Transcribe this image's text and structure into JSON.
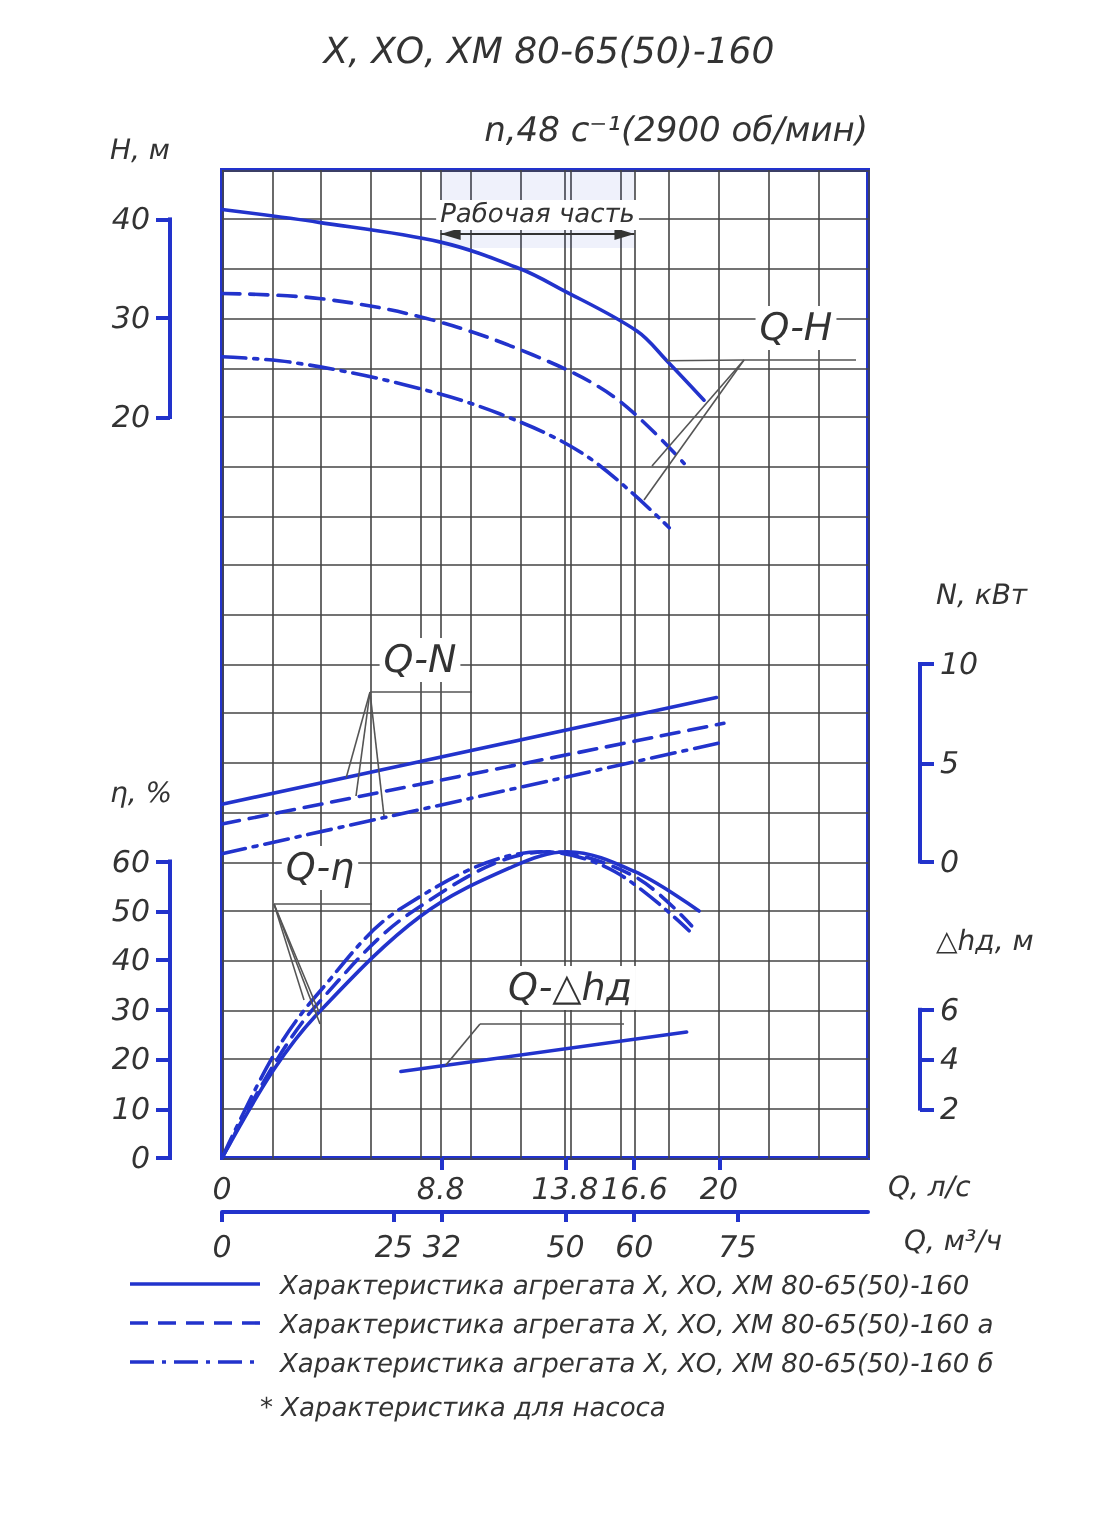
{
  "chart_data": [
    {
      "type": "line",
      "title": "Х, ХО, ХМ 80-65(50)-160",
      "subtitle": "n,48 с⁻¹(2900 об/мин)",
      "xlabel": "Q, л/с",
      "x2label": "Q, м³/ч",
      "ylabel": "Н, м",
      "y2label": "N, кВт",
      "y3label": "η, %",
      "xlim": [
        0,
        26
      ],
      "xticks": [
        0,
        {
          "value": 2,
          "label": null
        },
        {
          "value": 4,
          "label": null
        },
        {
          "value": 6,
          "label": null
        },
        {
          "value": 8,
          "label": null
        },
        8.8,
        {
          "value": 10,
          "label": null
        },
        {
          "value": 12,
          "label": null
        },
        13.8,
        {
          "value": 14,
          "label": null
        },
        {
          "value": 16,
          "label": null
        },
        16.6,
        {
          "value": 18,
          "label": null
        },
        20,
        {
          "value": 22,
          "label": null
        },
        {
          "value": 24,
          "label": null
        },
        {
          "value": 26,
          "label": null
        }
      ],
      "x2lim": [
        0,
        94
      ],
      "x2ticks": [
        0,
        25,
        32,
        50,
        60,
        75
      ],
      "ylim": [
        -55,
        45
      ],
      "yticks": [
        {
          "value": -55,
          "label": null
        },
        {
          "value": -50,
          "label": null
        },
        {
          "value": -45,
          "label": null
        },
        {
          "value": -40,
          "label": null
        },
        {
          "value": -35,
          "label": null
        },
        {
          "value": -30,
          "label": null
        },
        {
          "value": -25,
          "label": null
        },
        {
          "value": -20,
          "label": null
        },
        {
          "value": -15,
          "label": null
        },
        {
          "value": -10,
          "label": null
        },
        {
          "value": -5,
          "label": null
        },
        {
          "value": 0,
          "label": null
        },
        {
          "value": 5,
          "label": null
        },
        {
          "value": 10,
          "label": null
        },
        {
          "value": 15,
          "label": null
        },
        20,
        {
          "value": 25,
          "label": null
        },
        30,
        {
          "value": 35,
          "label": null
        },
        40,
        {
          "value": 45,
          "label": null
        }
      ],
      "y2lim": [
        -15,
        35
      ],
      "y2ticks": [
        0,
        5,
        10
      ],
      "y3lim": [
        0,
        200
      ],
      "y3ticks": [
        0,
        10,
        20,
        30,
        40,
        50,
        60
      ],
      "grid": true,
      "legend": "bottom",
      "marker": "none",
      "bands": [
        {
          "axis": "x",
          "from": 8.8,
          "to": 16.6,
          "label": "Рабочая часть"
        }
      ],
      "annotations": [
        {
          "text": "Q-H",
          "x": 17.9,
          "y": 25.7
        },
        {
          "text": "Q-N",
          "x": 5,
          "y": -16.5
        },
        {
          "text": "Q-η",
          "x": 3.9,
          "y": -40.2
        },
        "* Характеристика для насоса"
      ],
      "series": [
        {
          "name": "Характеристика агрегата Х, ХО, ХМ 80-65(50)-160",
          "color": "#2233cc",
          "line_style": "solid",
          "x": [
            0,
            3.9,
            8.8,
            12,
            13.6,
            16.7,
            17.9,
            19.4
          ],
          "values": [
            41,
            39.7,
            37.7,
            35,
            33,
            28.7,
            25.7,
            21.7
          ]
        },
        {
          "name": "Характеристика агрегата Х, ХО, ХМ 80-65(50)-160 а",
          "color": "#2233cc",
          "line_style": "dashed",
          "x": [
            0,
            3.9,
            8.2,
            12.5,
            15.8,
            18.6
          ],
          "values": [
            32.5,
            32,
            30,
            26.3,
            22,
            15.3
          ]
        },
        {
          "name": "Характеристика агрегата Х, ХО, ХМ 80-65(50)-160 б",
          "color": "#2233cc",
          "line_style": "dashdot",
          "x": [
            0,
            2.9,
            7.3,
            11.2,
            14.7,
            18
          ],
          "values": [
            26.1,
            25.5,
            23.3,
            20.3,
            16,
            8.8
          ]
        },
        {
          "color": "#2233cc",
          "line_style": "solid",
          "axis": "y2",
          "x": [
            0,
            19.9
          ],
          "values": [
            2.9,
            8.3
          ]
        },
        {
          "color": "#2233cc",
          "line_style": "dashed",
          "axis": "y2",
          "x": [
            0,
            20.2
          ],
          "values": [
            1.9,
            7.0
          ]
        },
        {
          "color": "#2233cc",
          "line_style": "dashdot",
          "axis": "y2",
          "x": [
            0,
            20
          ],
          "values": [
            0.4,
            6.0
          ]
        },
        {
          "color": "#2233cc",
          "line_style": "solid",
          "axis": "y3",
          "x": [
            0,
            2.1,
            3.9,
            8,
            11.7,
            13.9,
            16.6,
            19.2
          ],
          "values": [
            0,
            18,
            29.5,
            49,
            59,
            62,
            58,
            50
          ]
        },
        {
          "color": "#2233cc",
          "line_style": "dashed",
          "axis": "y3",
          "x": [
            0,
            2.1,
            3.9,
            7.7,
            13.1,
            16.6,
            18.9
          ],
          "values": [
            0,
            19,
            31.5,
            50,
            62,
            57,
            47
          ]
        },
        {
          "color": "#2233cc",
          "line_style": "dashdot",
          "axis": "y3",
          "x": [
            0,
            2.1,
            3.9,
            7.2,
            12.9,
            15.8,
            18.8
          ],
          "values": [
            0,
            21,
            33.5,
            50.5,
            62,
            58,
            46
          ]
        }
      ]
    },
    {
      "type": "line",
      "ylabel": "△hд, м",
      "xlim": [
        0,
        26
      ],
      "ylim": [
        0,
        40
      ],
      "yticks": [
        2,
        4,
        6
      ],
      "tick_labels": "y",
      "marker": "none",
      "annotations": [
        {
          "text": "Q-△hд",
          "x": 9,
          "y": 3.75
        }
      ],
      "series": [
        {
          "color": "#2233cc",
          "line_style": "solid",
          "x": [
            7.2,
            18.7
          ],
          "values": [
            3.5,
            5.1
          ]
        }
      ]
    }
  ]
}
